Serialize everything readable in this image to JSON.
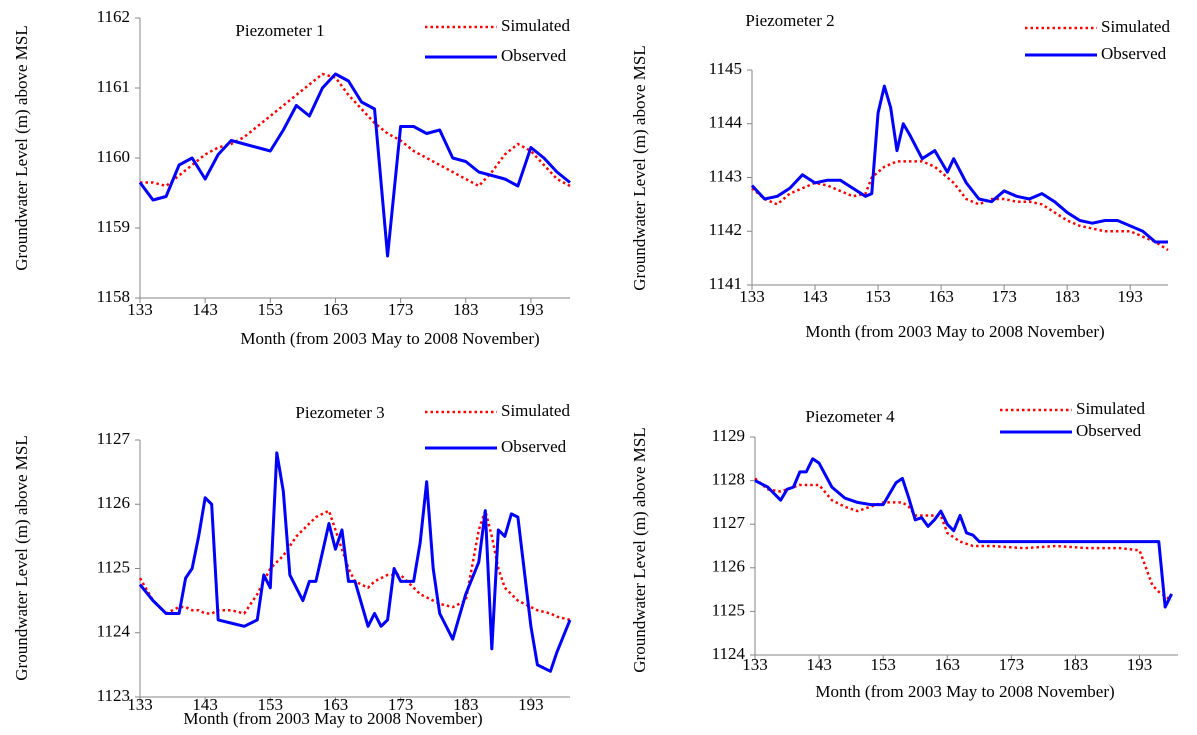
{
  "chart_data": [
    {
      "type": "line",
      "title": "Piezometer 1",
      "xlabel": "Month (from 2003 May to 2008 November)",
      "ylabel": "Groundwater Level (m) above MSL",
      "x": [
        133,
        135,
        137,
        139,
        141,
        143,
        145,
        147,
        149,
        151,
        153,
        155,
        157,
        159,
        161,
        163,
        165,
        167,
        169,
        171,
        173,
        175,
        177,
        179,
        181,
        183,
        185,
        187,
        189,
        191,
        193,
        195,
        197,
        199
      ],
      "series": [
        {
          "name": "Simulated",
          "color": "#ff0000",
          "line_style": "dotted",
          "values": [
            1159.65,
            1159.65,
            1159.6,
            1159.75,
            1159.9,
            1160.05,
            1160.15,
            1160.2,
            1160.3,
            1160.45,
            1160.6,
            1160.75,
            1160.9,
            1161.05,
            1161.2,
            1161.15,
            1160.9,
            1160.7,
            1160.5,
            1160.35,
            1160.25,
            1160.1,
            1160.0,
            1159.9,
            1159.8,
            1159.7,
            1159.6,
            1159.8,
            1160.05,
            1160.2,
            1160.1,
            1159.9,
            1159.7,
            1159.6
          ]
        },
        {
          "name": "Observed",
          "color": "#0000ff",
          "line_style": "solid",
          "values": [
            1159.65,
            1159.4,
            1159.45,
            1159.9,
            1160.0,
            1159.7,
            1160.05,
            1160.25,
            1160.2,
            1160.15,
            1160.1,
            1160.4,
            1160.75,
            1160.6,
            1161.0,
            1161.2,
            1161.1,
            1160.8,
            1160.7,
            1158.6,
            1160.45,
            1160.45,
            1160.35,
            1160.4,
            1160.0,
            1159.95,
            1159.8,
            1159.75,
            1159.7,
            1159.6,
            1160.15,
            1160.0,
            1159.8,
            1159.65
          ]
        }
      ],
      "xlim": [
        133,
        199
      ],
      "xticks": [
        133,
        143,
        153,
        163,
        173,
        183,
        193
      ],
      "ylim": [
        1158,
        1162
      ],
      "yticks": [
        1158,
        1159,
        1160,
        1161,
        1162
      ]
    },
    {
      "type": "line",
      "title": "Piezometer 2",
      "xlabel": "Month (from 2003 May to 2008 November)",
      "ylabel": "Groundwater Level (m) above MSL",
      "x": [
        133,
        135,
        137,
        139,
        141,
        143,
        145,
        147,
        149,
        151,
        152,
        153,
        154,
        155,
        156,
        157,
        158,
        160,
        162,
        164,
        165,
        167,
        169,
        171,
        173,
        175,
        177,
        179,
        181,
        183,
        185,
        187,
        189,
        191,
        193,
        195,
        197,
        199
      ],
      "series": [
        {
          "name": "Simulated",
          "color": "#ff0000",
          "line_style": "dotted",
          "values": [
            1142.8,
            1142.6,
            1142.5,
            1142.7,
            1142.8,
            1142.9,
            1142.85,
            1142.75,
            1142.65,
            1142.7,
            1143.0,
            1143.1,
            1143.2,
            1143.25,
            1143.3,
            1143.3,
            1143.3,
            1143.3,
            1143.2,
            1143.0,
            1142.9,
            1142.6,
            1142.5,
            1142.6,
            1142.6,
            1142.55,
            1142.55,
            1142.5,
            1142.35,
            1142.2,
            1142.1,
            1142.05,
            1142.0,
            1142.0,
            1142.0,
            1141.9,
            1141.8,
            1141.65
          ]
        },
        {
          "name": "Observed",
          "color": "#0000ff",
          "line_style": "solid",
          "values": [
            1142.85,
            1142.6,
            1142.65,
            1142.8,
            1143.05,
            1142.9,
            1142.95,
            1142.95,
            1142.8,
            1142.65,
            1142.7,
            1144.2,
            1144.7,
            1144.3,
            1143.5,
            1144.0,
            1143.8,
            1143.35,
            1143.5,
            1143.1,
            1143.35,
            1142.9,
            1142.6,
            1142.55,
            1142.75,
            1142.65,
            1142.6,
            1142.7,
            1142.55,
            1142.35,
            1142.2,
            1142.15,
            1142.2,
            1142.2,
            1142.1,
            1142.0,
            1141.8,
            1141.8
          ]
        }
      ],
      "xlim": [
        133,
        199
      ],
      "xticks": [
        133,
        143,
        153,
        163,
        173,
        183,
        193
      ],
      "ylim": [
        1141,
        1145
      ],
      "yticks": [
        1141,
        1142,
        1143,
        1144,
        1145
      ]
    },
    {
      "type": "line",
      "title": "Piezometer 3",
      "xlabel": "Month (from 2003 May to 2008 November)",
      "ylabel": "Groundwater Level (m) above MSL",
      "x": [
        133,
        135,
        137,
        139,
        140,
        141,
        142,
        143,
        144,
        145,
        147,
        149,
        151,
        152,
        153,
        154,
        155,
        156,
        157,
        158,
        159,
        160,
        162,
        163,
        164,
        165,
        166,
        168,
        169,
        170,
        171,
        172,
        173,
        175,
        176,
        177,
        178,
        179,
        181,
        183,
        185,
        186,
        187,
        188,
        189,
        190,
        191,
        193,
        194,
        196,
        197,
        199
      ],
      "series": [
        {
          "name": "Simulated",
          "color": "#ff0000",
          "line_style": "dotted",
          "values": [
            1124.85,
            1124.5,
            1124.3,
            1124.4,
            1124.4,
            1124.35,
            1124.35,
            1124.3,
            1124.3,
            1124.35,
            1124.35,
            1124.3,
            1124.6,
            1124.8,
            1125.0,
            1125.1,
            1125.2,
            1125.35,
            1125.5,
            1125.6,
            1125.7,
            1125.8,
            1125.9,
            1125.6,
            1125.3,
            1125.0,
            1124.8,
            1124.7,
            1124.8,
            1124.85,
            1124.9,
            1124.9,
            1124.9,
            1124.7,
            1124.6,
            1124.55,
            1124.5,
            1124.45,
            1124.4,
            1124.5,
            1125.6,
            1125.9,
            1125.5,
            1125.0,
            1124.7,
            1124.6,
            1124.5,
            1124.4,
            1124.35,
            1124.3,
            1124.25,
            1124.2
          ]
        },
        {
          "name": "Observed",
          "color": "#0000ff",
          "line_style": "solid",
          "values": [
            1124.75,
            1124.5,
            1124.3,
            1124.3,
            1124.85,
            1125.0,
            1125.5,
            1126.1,
            1126.0,
            1124.2,
            1124.15,
            1124.1,
            1124.2,
            1124.9,
            1124.7,
            1126.8,
            1126.2,
            1124.9,
            1124.7,
            1124.5,
            1124.8,
            1124.8,
            1125.7,
            1125.3,
            1125.6,
            1124.8,
            1124.8,
            1124.1,
            1124.3,
            1124.1,
            1124.2,
            1125.0,
            1124.8,
            1124.8,
            1125.4,
            1126.35,
            1125.0,
            1124.3,
            1123.9,
            1124.6,
            1125.1,
            1125.9,
            1123.75,
            1125.6,
            1125.5,
            1125.85,
            1125.8,
            1124.1,
            1123.5,
            1123.4,
            1123.7,
            1124.2
          ]
        }
      ],
      "xlim": [
        133,
        199
      ],
      "xticks": [
        133,
        143,
        153,
        163,
        173,
        183,
        193
      ],
      "ylim": [
        1123,
        1127
      ],
      "yticks": [
        1123,
        1124,
        1125,
        1126,
        1127
      ]
    },
    {
      "type": "line",
      "title": "Piezometer 4",
      "xlabel": "Month (from 2003 May to 2008 November)",
      "ylabel": "Groundwater Level (m) above MSL",
      "x": [
        133,
        135,
        137,
        138,
        139,
        140,
        141,
        142,
        143,
        145,
        147,
        149,
        151,
        153,
        155,
        156,
        157,
        158,
        159,
        160,
        161,
        162,
        163,
        164,
        165,
        166,
        167,
        168,
        170,
        175,
        180,
        185,
        190,
        193,
        195,
        196,
        197,
        198
      ],
      "series": [
        {
          "name": "Simulated",
          "color": "#ff0000",
          "line_style": "dotted",
          "values": [
            1128.05,
            1127.8,
            1127.75,
            1127.8,
            1127.85,
            1127.9,
            1127.9,
            1127.9,
            1127.9,
            1127.55,
            1127.4,
            1127.3,
            1127.4,
            1127.5,
            1127.5,
            1127.5,
            1127.4,
            1127.2,
            1127.2,
            1127.2,
            1127.2,
            1127.2,
            1126.8,
            1126.7,
            1126.6,
            1126.55,
            1126.5,
            1126.5,
            1126.5,
            1126.45,
            1126.5,
            1126.45,
            1126.45,
            1126.4,
            1125.6,
            1125.45,
            1125.35,
            1125.25
          ]
        },
        {
          "name": "Observed",
          "color": "#0000ff",
          "line_style": "solid",
          "values": [
            1128.0,
            1127.85,
            1127.55,
            1127.8,
            1127.85,
            1128.2,
            1128.2,
            1128.5,
            1128.4,
            1127.85,
            1127.6,
            1127.5,
            1127.45,
            1127.45,
            1127.95,
            1128.05,
            1127.6,
            1127.1,
            1127.15,
            1126.95,
            1127.1,
            1127.3,
            1127.0,
            1126.85,
            1127.2,
            1126.8,
            1126.75,
            1126.6,
            1126.6,
            1126.6,
            1126.6,
            1126.6,
            1126.6,
            1126.6,
            1126.6,
            1126.6,
            1125.1,
            1125.4
          ]
        }
      ],
      "xlim": [
        133,
        199
      ],
      "xticks": [
        133,
        143,
        153,
        163,
        173,
        183,
        193
      ],
      "ylim": [
        1124,
        1129
      ],
      "yticks": [
        1124,
        1125,
        1126,
        1127,
        1128,
        1129
      ]
    }
  ]
}
